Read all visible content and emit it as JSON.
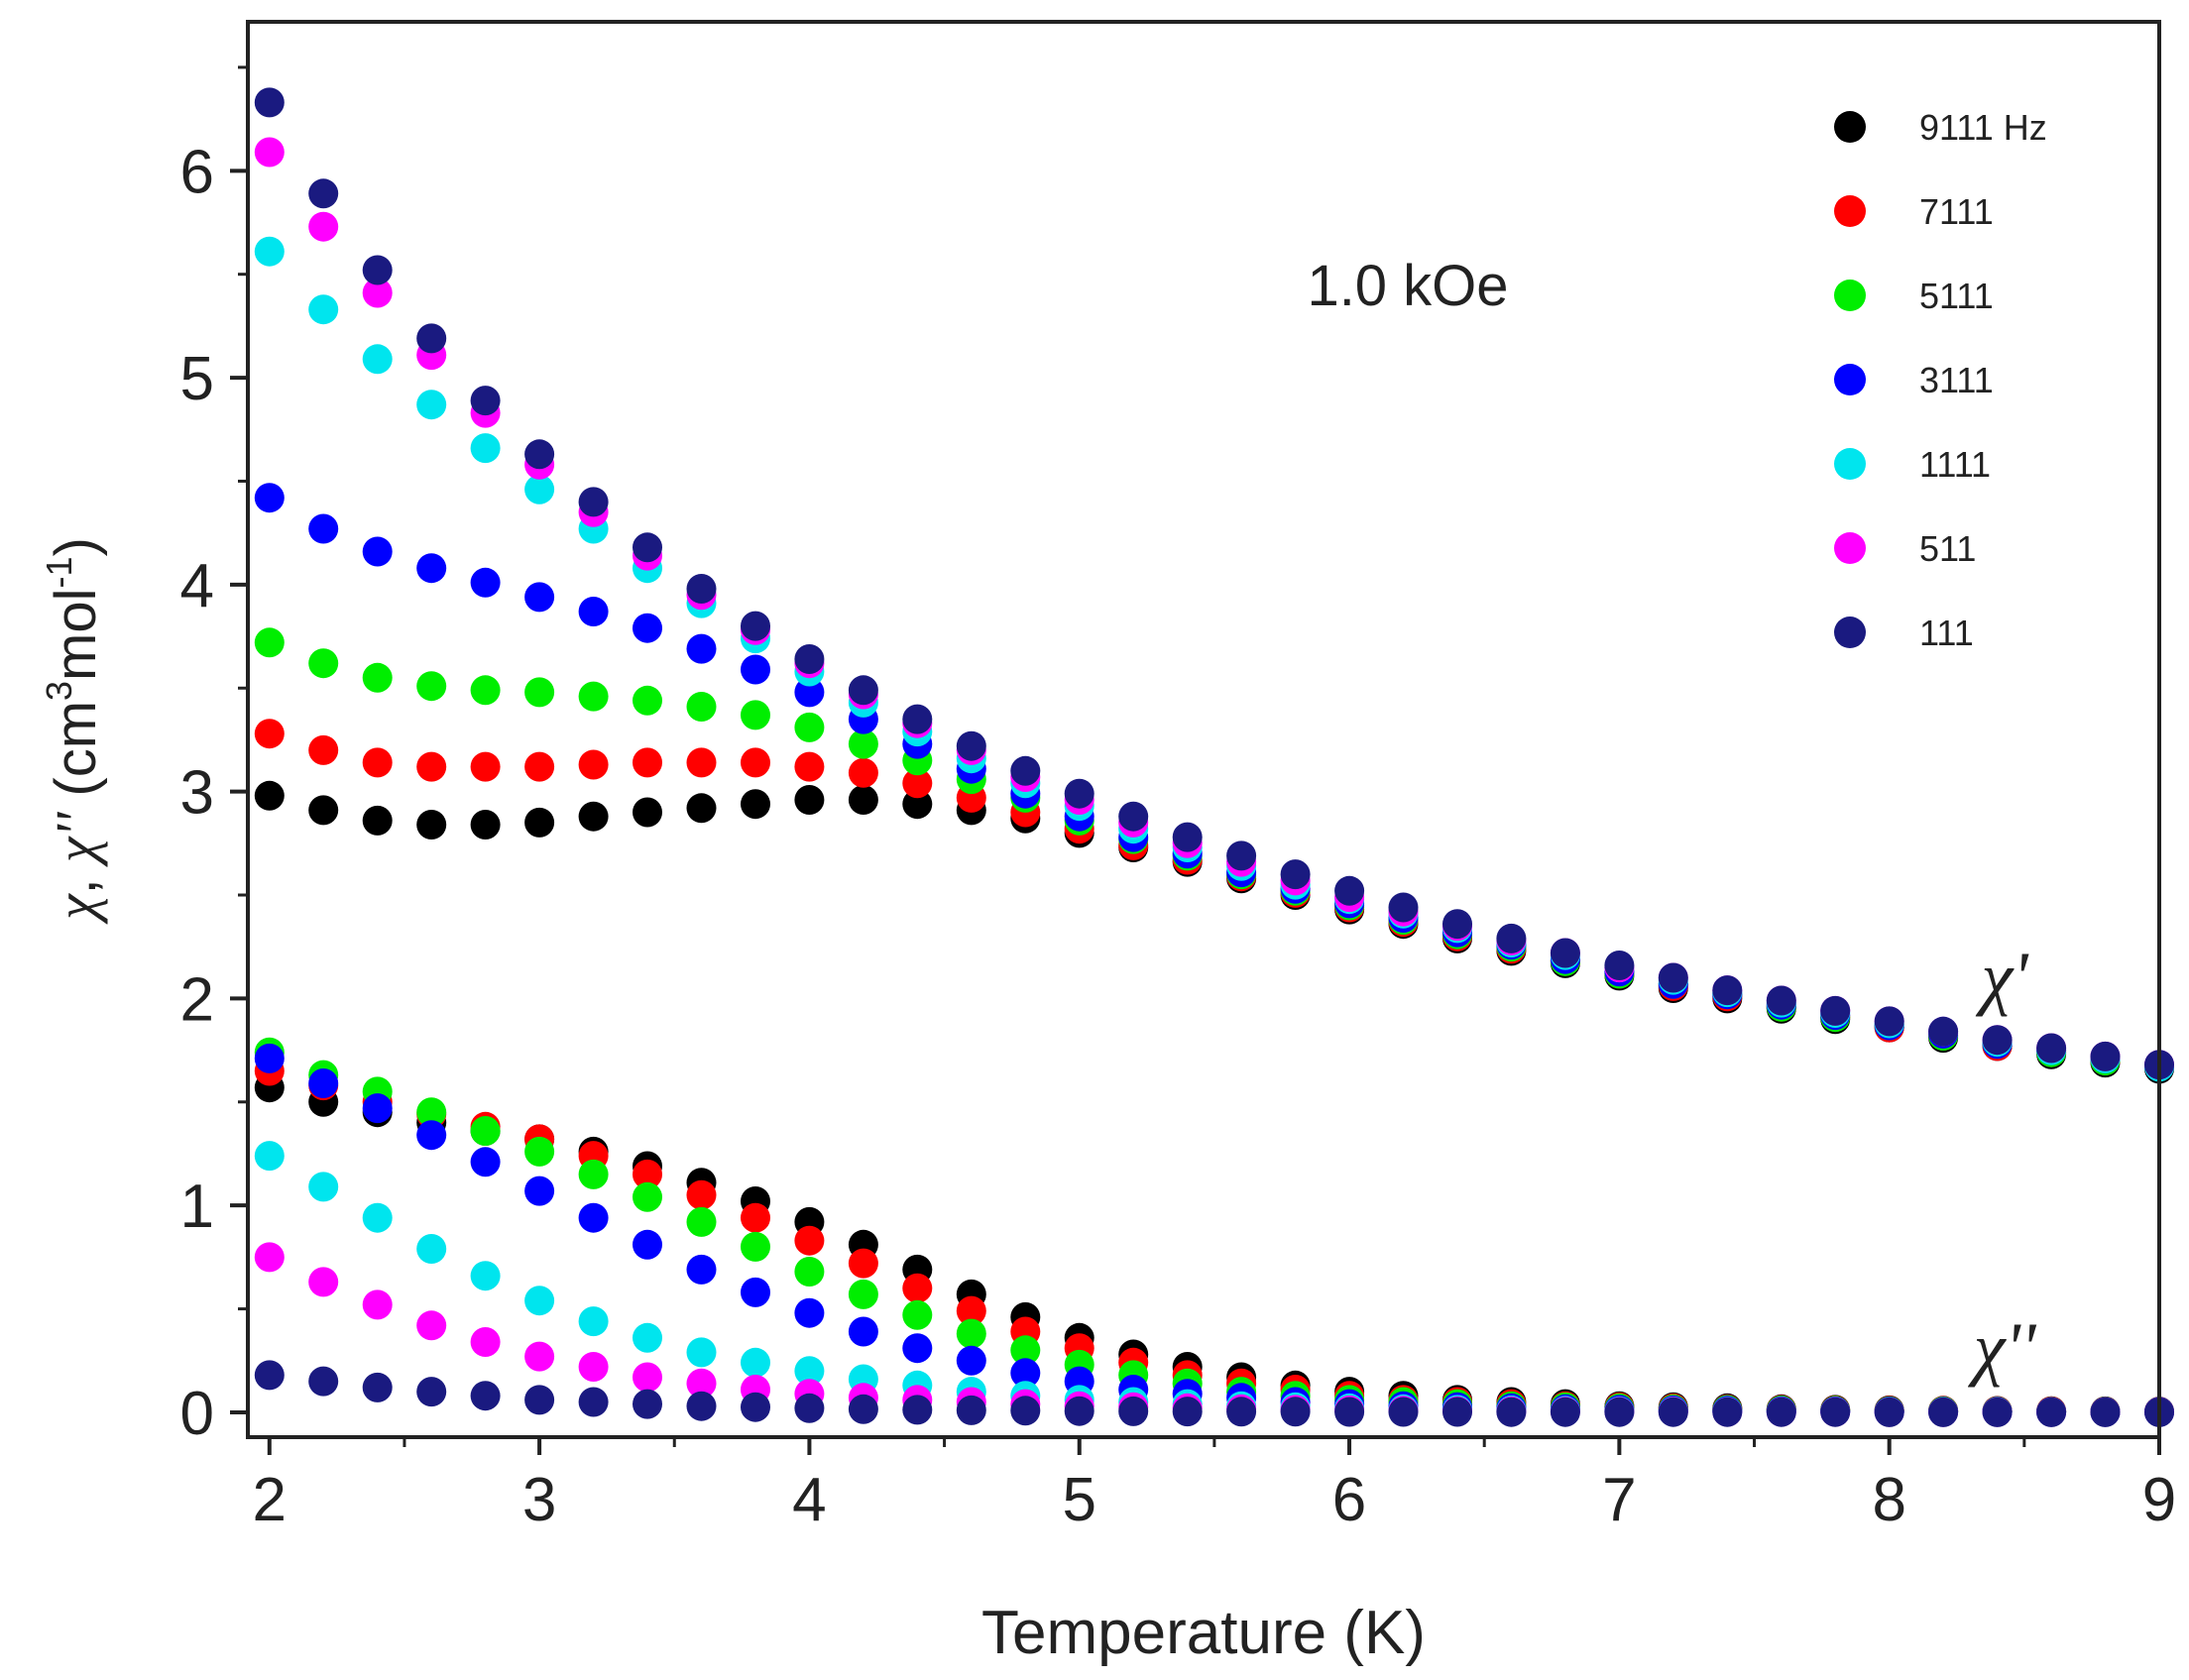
{
  "chart_data": {
    "type": "scatter",
    "title": "",
    "xlabel": "Temperature (K)",
    "ylabel_parts": {
      "chi1": "χ",
      "sep": ",",
      "chi2": "χ",
      "primes": "''",
      "unit_open": " (cm",
      "unit_sup1": "3",
      "unit_mid": "mol",
      "unit_sup2": "-1",
      "unit_close": ")"
    },
    "xlim": [
      1.92,
      9.0
    ],
    "ylim": [
      -0.12,
      6.72
    ],
    "xticks": [
      2,
      3,
      4,
      5,
      6,
      7,
      8,
      9
    ],
    "yticks": [
      0,
      1,
      2,
      3,
      4,
      5,
      6
    ],
    "annotation_field": "1.0 kOe",
    "annotation_real": "χ'",
    "annotation_imag": "χ''",
    "x": [
      2.0,
      2.2,
      2.4,
      2.6,
      2.8,
      3.0,
      3.2,
      3.4,
      3.6,
      3.8,
      4.0,
      4.2,
      4.4,
      4.6,
      4.8,
      5.0,
      5.2,
      5.4,
      5.6,
      5.8,
      6.0,
      6.2,
      6.4,
      6.6,
      6.8,
      7.0,
      7.2,
      7.4,
      7.6,
      7.8,
      8.0,
      8.2,
      8.4,
      8.6,
      8.8,
      9.0
    ],
    "series": [
      {
        "name": "9111 Hz",
        "color": "#000000",
        "chi_real": [
          2.98,
          2.91,
          2.86,
          2.84,
          2.84,
          2.85,
          2.88,
          2.9,
          2.92,
          2.94,
          2.96,
          2.96,
          2.94,
          2.91,
          2.87,
          2.8,
          2.73,
          2.66,
          2.58,
          2.5,
          2.43,
          2.36,
          2.29,
          2.23,
          2.17,
          2.11,
          2.05,
          2.0,
          1.95,
          1.9,
          1.86,
          1.81,
          1.77,
          1.73,
          1.69,
          1.66
        ],
        "chi_imag": [
          1.57,
          1.5,
          1.45,
          1.4,
          1.36,
          1.32,
          1.26,
          1.19,
          1.11,
          1.02,
          0.92,
          0.81,
          0.69,
          0.57,
          0.46,
          0.36,
          0.28,
          0.22,
          0.17,
          0.13,
          0.1,
          0.08,
          0.06,
          0.05,
          0.04,
          0.03,
          0.025,
          0.02,
          0.015,
          0.012,
          0.01,
          0.008,
          0.007,
          0.006,
          0.005,
          0.004
        ]
      },
      {
        "name": "7111",
        "color": "#ff0000",
        "chi_real": [
          3.28,
          3.2,
          3.14,
          3.12,
          3.12,
          3.12,
          3.13,
          3.14,
          3.14,
          3.14,
          3.12,
          3.09,
          3.04,
          2.97,
          2.9,
          2.82,
          2.74,
          2.67,
          2.59,
          2.51,
          2.44,
          2.37,
          2.3,
          2.24,
          2.18,
          2.12,
          2.06,
          2.01,
          1.96,
          1.91,
          1.86,
          1.82,
          1.77,
          1.74,
          1.7,
          1.67
        ],
        "chi_imag": [
          1.65,
          1.58,
          1.5,
          1.44,
          1.38,
          1.32,
          1.24,
          1.15,
          1.05,
          0.94,
          0.83,
          0.72,
          0.6,
          0.49,
          0.39,
          0.31,
          0.24,
          0.18,
          0.14,
          0.11,
          0.08,
          0.06,
          0.05,
          0.04,
          0.03,
          0.025,
          0.02,
          0.015,
          0.012,
          0.01,
          0.008,
          0.007,
          0.006,
          0.005,
          0.004,
          0.003
        ]
      },
      {
        "name": "5111",
        "color": "#00ee00",
        "chi_real": [
          3.72,
          3.62,
          3.55,
          3.51,
          3.49,
          3.48,
          3.46,
          3.44,
          3.41,
          3.37,
          3.31,
          3.23,
          3.15,
          3.06,
          2.97,
          2.86,
          2.77,
          2.69,
          2.6,
          2.52,
          2.45,
          2.38,
          2.31,
          2.25,
          2.18,
          2.12,
          2.07,
          2.02,
          1.96,
          1.91,
          1.87,
          1.82,
          1.78,
          1.74,
          1.7,
          1.67
        ],
        "chi_imag": [
          1.74,
          1.63,
          1.55,
          1.45,
          1.36,
          1.26,
          1.15,
          1.04,
          0.92,
          0.8,
          0.68,
          0.57,
          0.47,
          0.38,
          0.3,
          0.23,
          0.18,
          0.14,
          0.1,
          0.08,
          0.06,
          0.05,
          0.04,
          0.03,
          0.025,
          0.02,
          0.015,
          0.012,
          0.01,
          0.008,
          0.006,
          0.005,
          0.004,
          0.003,
          0.003,
          0.002
        ]
      },
      {
        "name": "3111",
        "color": "#0000ff",
        "chi_real": [
          4.42,
          4.27,
          4.16,
          4.08,
          4.01,
          3.94,
          3.87,
          3.79,
          3.69,
          3.59,
          3.48,
          3.35,
          3.23,
          3.11,
          2.99,
          2.88,
          2.78,
          2.7,
          2.61,
          2.53,
          2.46,
          2.39,
          2.32,
          2.26,
          2.19,
          2.13,
          2.07,
          2.02,
          1.97,
          1.92,
          1.87,
          1.83,
          1.78,
          1.75,
          1.71,
          1.67
        ],
        "chi_imag": [
          1.71,
          1.59,
          1.47,
          1.34,
          1.21,
          1.07,
          0.94,
          0.81,
          0.69,
          0.58,
          0.48,
          0.39,
          0.31,
          0.25,
          0.19,
          0.15,
          0.11,
          0.09,
          0.07,
          0.05,
          0.04,
          0.03,
          0.025,
          0.02,
          0.015,
          0.012,
          0.01,
          0.008,
          0.006,
          0.005,
          0.004,
          0.003,
          0.003,
          0.002,
          0.002,
          0.002
        ]
      },
      {
        "name": "1111",
        "color": "#00e5ee",
        "chi_real": [
          5.61,
          5.33,
          5.09,
          4.87,
          4.66,
          4.46,
          4.27,
          4.08,
          3.91,
          3.74,
          3.58,
          3.43,
          3.29,
          3.16,
          3.04,
          2.93,
          2.82,
          2.73,
          2.64,
          2.55,
          2.48,
          2.41,
          2.34,
          2.27,
          2.21,
          2.15,
          2.09,
          2.03,
          1.98,
          1.93,
          1.88,
          1.84,
          1.79,
          1.75,
          1.71,
          1.67
        ],
        "chi_imag": [
          1.24,
          1.09,
          0.94,
          0.79,
          0.66,
          0.54,
          0.44,
          0.36,
          0.29,
          0.24,
          0.2,
          0.16,
          0.13,
          0.1,
          0.08,
          0.06,
          0.05,
          0.04,
          0.03,
          0.025,
          0.02,
          0.015,
          0.012,
          0.01,
          0.008,
          0.006,
          0.005,
          0.004,
          0.003,
          0.003,
          0.002,
          0.002,
          0.002,
          0.001,
          0.001,
          0.001
        ]
      },
      {
        "name": "511",
        "color": "#ff00ff",
        "chi_real": [
          6.09,
          5.73,
          5.41,
          5.11,
          4.83,
          4.58,
          4.35,
          4.14,
          3.95,
          3.78,
          3.62,
          3.47,
          3.33,
          3.2,
          3.07,
          2.96,
          2.85,
          2.75,
          2.66,
          2.57,
          2.49,
          2.42,
          2.35,
          2.28,
          2.22,
          2.15,
          2.1,
          2.04,
          1.99,
          1.94,
          1.89,
          1.84,
          1.8,
          1.76,
          1.72,
          1.68
        ],
        "chi_imag": [
          0.75,
          0.63,
          0.52,
          0.42,
          0.34,
          0.27,
          0.22,
          0.17,
          0.14,
          0.11,
          0.09,
          0.07,
          0.06,
          0.05,
          0.04,
          0.03,
          0.025,
          0.02,
          0.015,
          0.012,
          0.01,
          0.008,
          0.006,
          0.005,
          0.004,
          0.003,
          0.003,
          0.002,
          0.002,
          0.002,
          0.001,
          0.001,
          0.001,
          0.001,
          0.001,
          0.001
        ]
      },
      {
        "name": "111",
        "color": "#1a1a80",
        "chi_real": [
          6.33,
          5.89,
          5.52,
          5.19,
          4.89,
          4.63,
          4.4,
          4.18,
          3.98,
          3.8,
          3.64,
          3.49,
          3.35,
          3.22,
          3.1,
          2.99,
          2.88,
          2.78,
          2.69,
          2.6,
          2.52,
          2.44,
          2.36,
          2.29,
          2.22,
          2.16,
          2.1,
          2.04,
          1.99,
          1.94,
          1.89,
          1.84,
          1.8,
          1.76,
          1.72,
          1.68
        ],
        "chi_imag": [
          0.18,
          0.15,
          0.12,
          0.1,
          0.08,
          0.06,
          0.05,
          0.04,
          0.03,
          0.025,
          0.02,
          0.015,
          0.012,
          0.01,
          0.008,
          0.006,
          0.005,
          0.004,
          0.003,
          0.003,
          0.002,
          0.002,
          0.002,
          0.001,
          0.001,
          0.001,
          0.001,
          0.001,
          0.001,
          0.001,
          0.0,
          0.0,
          0.0,
          0.0,
          0.0,
          0.0
        ]
      }
    ]
  }
}
